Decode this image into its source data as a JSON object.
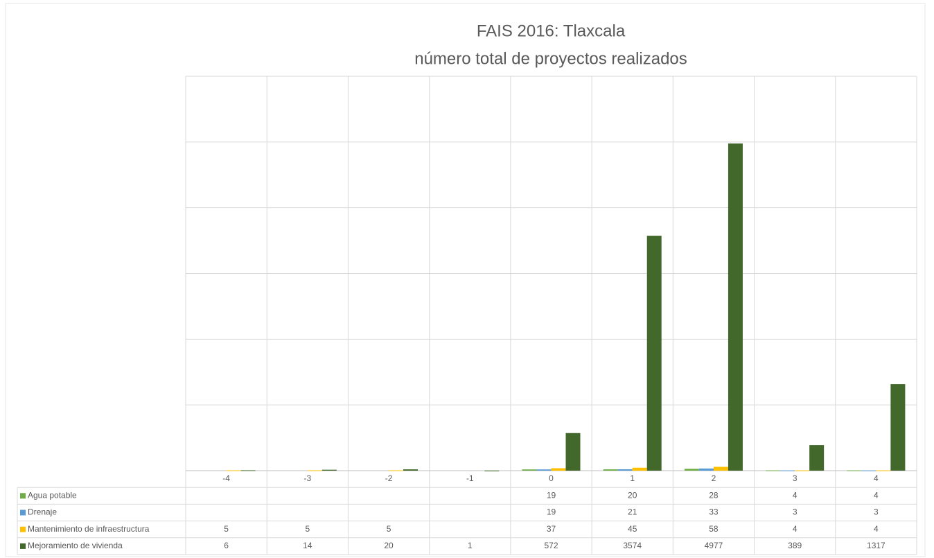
{
  "chart_data": {
    "type": "bar",
    "title": "FAIS 2016: Tlaxcala",
    "subtitle": "número total de proyectos realizados",
    "categories": [
      "-4",
      "-3",
      "-2",
      "-1",
      "0",
      "1",
      "2",
      "3",
      "4"
    ],
    "series": [
      {
        "name": "Agua potable",
        "color": "#70ad47",
        "values": [
          null,
          null,
          null,
          null,
          19,
          20,
          28,
          4,
          4
        ]
      },
      {
        "name": "Drenaje",
        "color": "#5b9bd5",
        "values": [
          null,
          null,
          null,
          null,
          19,
          21,
          33,
          3,
          3
        ]
      },
      {
        "name": "Mantenimiento de infraestructura",
        "color": "#ffc000",
        "values": [
          5,
          5,
          5,
          null,
          37,
          45,
          58,
          4,
          4
        ]
      },
      {
        "name": "Mejoramiento de vivienda",
        "color": "#43682b",
        "values": [
          6,
          14,
          20,
          1,
          572,
          3574,
          4977,
          389,
          1317
        ]
      }
    ],
    "ylim": [
      0,
      6000
    ],
    "yticks": [
      0,
      1000,
      2000,
      3000,
      4000,
      5000,
      6000
    ],
    "grid": true
  }
}
